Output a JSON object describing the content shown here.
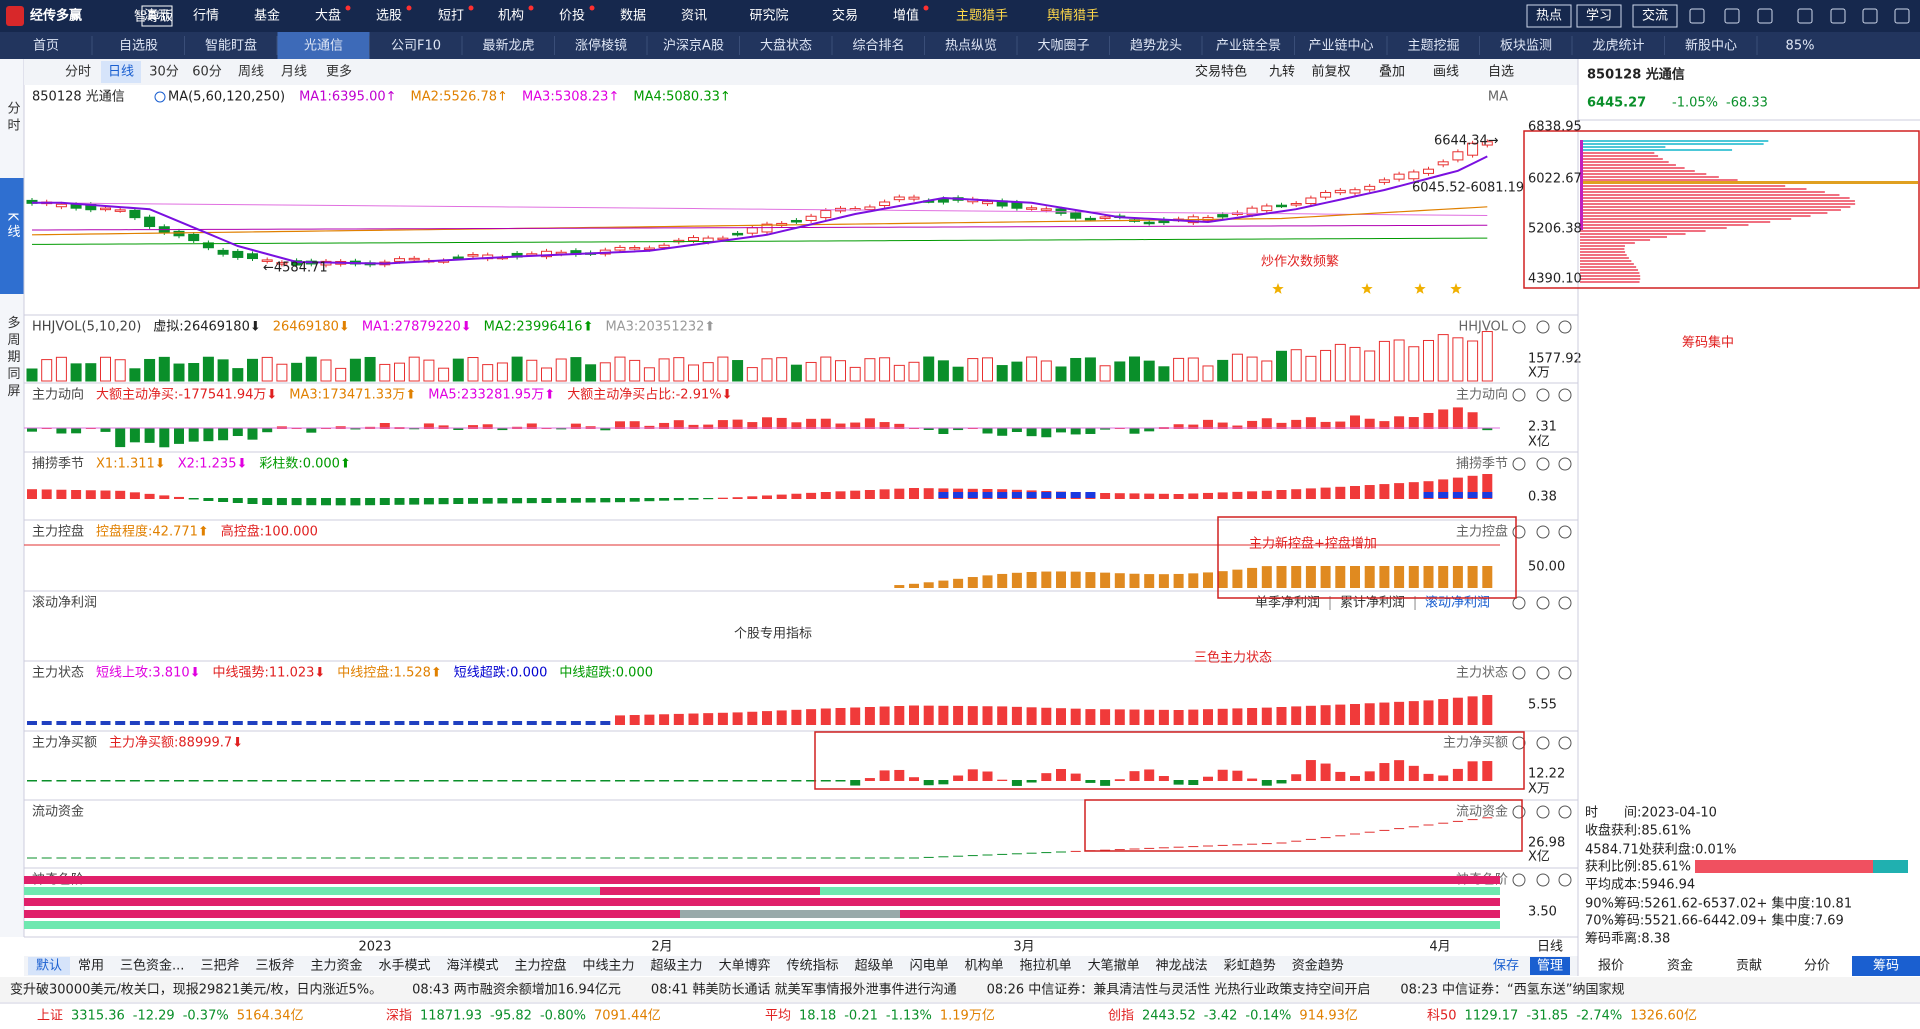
{
  "menu": {
    "logo": "经传多赢",
    "edition": "智尊版",
    "mode": "演示",
    "items": [
      "行情",
      "基金",
      "大盘",
      "选股",
      "短打",
      "机构",
      "价投",
      "数据",
      "资讯",
      "研究院",
      "交易",
      "增值",
      "主题猎手",
      "舆情猎手"
    ],
    "right": [
      "热点",
      "学习",
      "交流"
    ]
  },
  "tabs": {
    "items": [
      "首页",
      "自选股",
      "智能盯盘",
      "光通信",
      "公司F10",
      "最新龙虎",
      "涨停棱镜",
      "沪深京A股",
      "大盘状态",
      "综合排名",
      "热点纵览",
      "大咖圈子",
      "趋势龙头",
      "产业链全景",
      "产业链中心",
      "主题挖掘",
      "板块监测",
      "龙虎统计",
      "新股中心"
    ],
    "zoom": "85%"
  },
  "side_tabs": [
    "分时",
    "K线",
    "多周期同屏"
  ],
  "periods": {
    "items": [
      "分时",
      "日线",
      "30分",
      "60分",
      "周线",
      "月线",
      "更多"
    ],
    "tools": [
      "交易特色",
      "九转",
      "前复权",
      "叠加",
      "画线",
      "自选"
    ]
  },
  "main": {
    "code": "850128 光通信",
    "ma": "MA(5,60,120,250)",
    "indicators": [
      {
        "text": "MA1:6395.00↑",
        "color": "#c000d0"
      },
      {
        "text": "MA2:5526.78↑",
        "color": "#e08000"
      },
      {
        "text": "MA3:5308.23↑",
        "color": "#e000e0"
      },
      {
        "text": "MA4:5080.33↑",
        "color": "#009a00"
      }
    ],
    "label": "MA",
    "high": "6644.34→",
    "range": "6045.52-6081.19",
    "low": "←4584.71"
  },
  "panels": [
    {
      "title": "HHJVOL(5,10,20)",
      "indicators": [
        {
          "text": "虚拟:26469180⬇",
          "color": "#222222"
        },
        {
          "text": "26469180⬇",
          "color": "#e08000"
        },
        {
          "text": "MA1:27879220⬇",
          "color": "#e000e0"
        },
        {
          "text": "MA2:23996416⬆",
          "color": "#009a00"
        },
        {
          "text": "MA3:20351232⬆",
          "color": "#999999"
        }
      ],
      "label": "HHJVOL",
      "scale": [
        "1577.92",
        "X万"
      ]
    },
    {
      "title": "主力动向",
      "indicators": [
        {
          "text": "大额主动净买:-177541.94万⬇",
          "color": "#e02020"
        },
        {
          "text": "MA3:173471.33万⬆",
          "color": "#e08000"
        },
        {
          "text": "MA5:233281.95万⬆",
          "color": "#e000e0"
        },
        {
          "text": "大额主动净买占比:-2.91%⬇",
          "color": "#e02020"
        }
      ],
      "label": "主力动向",
      "scale": [
        "2.31",
        "X亿"
      ]
    },
    {
      "title": "捕捞季节",
      "indicators": [
        {
          "text": "X1:1.311⬇",
          "color": "#e08000"
        },
        {
          "text": "X2:1.235⬇",
          "color": "#e000e0"
        },
        {
          "text": "彩柱数:0.000⬆",
          "color": "#009a00"
        }
      ],
      "label": "捕捞季节",
      "scale": [
        "0.38"
      ]
    },
    {
      "title": "主力控盘",
      "indicators": [
        {
          "text": "控盘程度:42.771⬆",
          "color": "#e08000"
        },
        {
          "text": "高控盘:100.000",
          "color": "#e02020"
        }
      ],
      "label": "主力控盘",
      "scale": [
        "50.00"
      ]
    },
    {
      "title": "滚动净利润",
      "indicators": [],
      "note": "个股专用指标",
      "tabs": [
        "单季净利润",
        "累计净利润",
        "滚动净利润"
      ]
    },
    {
      "title": "主力状态",
      "indicators": [
        {
          "text": "短线上攻:3.810⬇",
          "color": "#e000e0"
        },
        {
          "text": "中线强势:11.023⬇",
          "color": "#e02020"
        },
        {
          "text": "中线控盘:1.528⬆",
          "color": "#e08000"
        },
        {
          "text": "短线超跌:0.000",
          "color": "#0000d0"
        },
        {
          "text": "中线超跌:0.000",
          "color": "#009a00"
        }
      ],
      "label": "主力状态",
      "scale": [
        "5.55"
      ]
    },
    {
      "title": "主力净买额",
      "indicators": [
        {
          "text": "主力净买额:88999.7⬇",
          "color": "#e02020"
        }
      ],
      "label": "主力净买额",
      "scale": [
        "12.22",
        "X万"
      ]
    },
    {
      "title": "流动资金",
      "indicators": [],
      "label": "流动资金",
      "scale": [
        "26.98",
        "X亿"
      ]
    },
    {
      "title": "神奇色阶",
      "indicators": [],
      "label": "神奇色阶",
      "scale": [
        "3.50"
      ]
    }
  ],
  "annotations": [
    "炒作次数频繁",
    "主力新控盘+控盘增加",
    "三色主力状态",
    "筹码集中"
  ],
  "x_labels": [
    "2023",
    "2月",
    "3月",
    "4月",
    "日线"
  ],
  "formula_tabs": [
    "默认",
    "常用",
    "三色资金...",
    "三把斧",
    "三板斧",
    "主力资金",
    "水手模式",
    "海洋模式",
    "主力控盘",
    "中线主力",
    "超级主力",
    "大单博弈",
    "传统指标",
    "超级单",
    "闪电单",
    "机构单",
    "拖拉机单",
    "大笔撤单",
    "神龙战法",
    "彩虹趋势",
    "资金趋势"
  ],
  "formula_actions": [
    "保存",
    "管理"
  ],
  "quote": {
    "title": "850128 光通信",
    "price": "6445.27",
    "change_pct": "-1.05%",
    "change": "-68.33",
    "scale": [
      "6838.95",
      "6022.67",
      "5206.38",
      "4390.10"
    ],
    "info": [
      "时　　间:2023-04-10",
      "收盘获利:85.61%",
      "4584.71处获利盘:0.01%",
      "获利比例:85.61%",
      "平均成本:5946.94",
      "90%筹码:5261.62-6537.02+ 集中度:10.81",
      "70%筹码:5521.66-6442.09+ 集中度:7.69",
      "筹码乖离:8.38"
    ],
    "tabs": [
      "报价",
      "资金",
      "贡献",
      "分价",
      "筹码"
    ]
  },
  "news": [
    "变升破30000美元/枚关口，现报29821美元/枚，日内涨近5%。",
    "08:43 两市融资余额增加16.94亿元",
    "08:41 韩美防长通话 就美军事情报外泄事件进行沟通",
    "08:26 中信证券：兼具清洁性与灵活性 光热行业政策支持空间开启",
    "08:23 中信证券：“西氢东送”纳国家规"
  ],
  "indices": [
    {
      "name": "上证",
      "values": [
        "3315.36",
        "-12.29",
        "-0.37%",
        "5164.34亿"
      ]
    },
    {
      "name": "深指",
      "values": [
        "11871.93",
        "-95.82",
        "-0.80%",
        "7091.44亿"
      ]
    },
    {
      "name": "平均",
      "values": [
        "18.18",
        "-0.21",
        "-1.13%",
        "1.19万亿"
      ]
    },
    {
      "name": "创指",
      "values": [
        "2443.52",
        "-3.42",
        "-0.14%",
        "914.93亿"
      ]
    },
    {
      "name": "科50",
      "values": [
        "1129.17",
        "-31.85",
        "-2.74%",
        "1326.60亿"
      ]
    }
  ]
}
